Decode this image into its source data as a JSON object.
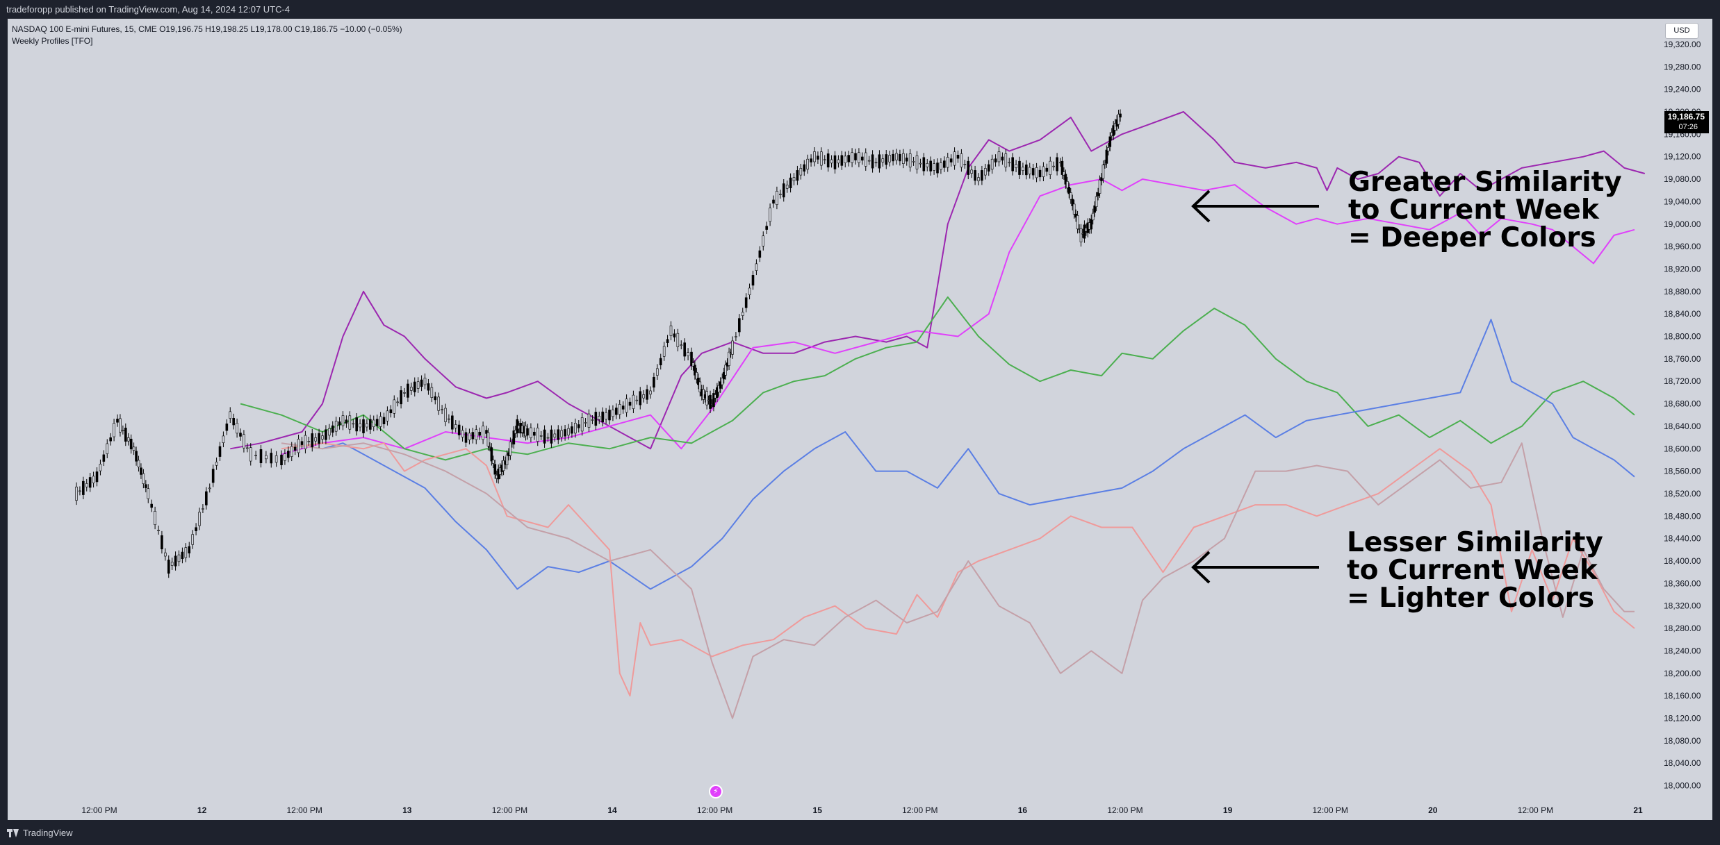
{
  "header": {
    "published_text": "tradeforopp published on TradingView.com, Aug 14, 2024 12:07 UTC-4"
  },
  "legend": {
    "symbol_line": "NASDAQ 100 E-mini Futures, 15, CME  O19,196.75  H19,198.25  L19,178.00  C19,186.75  −10.00 (−0.05%)",
    "indicator": "Weekly Profiles [TFO]"
  },
  "price_scale": {
    "currency": "USD",
    "last_price": "19,186.75",
    "countdown": "07:26"
  },
  "annotations": {
    "greater": [
      "Greater Similarity",
      "to Current Week",
      "= Deeper Colors"
    ],
    "lesser": [
      "Lesser Similarity",
      "to Current Week",
      "= Lighter Colors"
    ]
  },
  "footer": {
    "brand": "TradingView"
  },
  "icons": {
    "event_marker": "lightning-icon",
    "arrow": "arrow-left-icon"
  },
  "colors": {
    "background": "#d1d4dc",
    "frame": "#1e222d",
    "candles": "#000000"
  },
  "chart_data": {
    "type": "line",
    "title": "",
    "xlabel": "",
    "ylabel": "",
    "ylim": [
      17970,
      19330
    ],
    "x_ticks": [
      "12:00 PM",
      "12",
      "12:00 PM",
      "13",
      "12:00 PM",
      "14",
      "12:00 PM",
      "15",
      "12:00 PM",
      "16",
      "12:00 PM",
      "19",
      "12:00 PM",
      "20",
      "12:00 PM",
      "21"
    ],
    "y_ticks": [
      "18,000.00",
      "18,040.00",
      "18,080.00",
      "18,120.00",
      "18,160.00",
      "18,200.00",
      "18,240.00",
      "18,280.00",
      "18,320.00",
      "18,360.00",
      "18,400.00",
      "18,440.00",
      "18,480.00",
      "18,520.00",
      "18,560.00",
      "18,600.00",
      "18,640.00",
      "18,680.00",
      "18,720.00",
      "18,760.00",
      "18,800.00",
      "18,840.00",
      "18,880.00",
      "18,920.00",
      "18,960.00",
      "19,000.00",
      "19,040.00",
      "19,080.00",
      "19,120.00",
      "19,160.00",
      "19,200.00",
      "19,240.00",
      "19,280.00",
      "19,320.00"
    ],
    "x_range_days": [
      0,
      7.5
    ],
    "candles": {
      "name": "",
      "color": "#000000",
      "x": [
        0.0,
        0.1,
        0.2,
        0.28,
        0.35,
        0.45,
        0.55,
        0.65,
        0.75,
        0.85,
        1.0,
        1.1,
        1.2,
        1.3,
        1.4,
        1.5,
        1.6,
        1.7,
        1.8,
        1.9,
        2.0,
        2.05,
        2.1,
        2.15,
        2.2,
        2.3,
        2.4,
        2.5,
        2.6,
        2.7,
        2.8,
        2.9,
        3.0,
        3.05,
        3.1,
        3.15,
        3.2,
        3.3,
        3.4,
        3.5,
        3.6,
        3.7,
        3.8,
        3.9,
        4.0,
        4.1,
        4.2,
        4.3,
        4.4,
        4.5,
        4.6,
        4.7,
        4.8,
        4.85,
        4.9,
        4.95,
        5.0,
        5.05,
        5.1
      ],
      "values": [
        18520,
        18550,
        18650,
        18600,
        18520,
        18390,
        18420,
        18530,
        18660,
        18590,
        18580,
        18610,
        18620,
        18650,
        18640,
        18650,
        18700,
        18720,
        18660,
        18620,
        18630,
        18550,
        18580,
        18640,
        18630,
        18620,
        18630,
        18650,
        18660,
        18680,
        18700,
        18810,
        18760,
        18700,
        18680,
        18720,
        18780,
        18900,
        19040,
        19080,
        19120,
        19110,
        19120,
        19110,
        19120,
        19110,
        19100,
        19120,
        19080,
        19120,
        19100,
        19090,
        19110,
        19050,
        18980,
        19000,
        19080,
        19160,
        19200
      ]
    },
    "series": [
      {
        "name": "",
        "color": "#9c27b0",
        "x": [
          0.75,
          0.9,
          1.1,
          1.2,
          1.3,
          1.4,
          1.5,
          1.6,
          1.7,
          1.85,
          2.0,
          2.1,
          2.25,
          2.4,
          2.55,
          2.7,
          2.8,
          2.95,
          3.05,
          3.2,
          3.35,
          3.5,
          3.65,
          3.8,
          3.95,
          4.05,
          4.15,
          4.25,
          4.35,
          4.45,
          4.55,
          4.7,
          4.85,
          4.95,
          5.1,
          5.25,
          5.4,
          5.55,
          5.65,
          5.8,
          5.95,
          6.05,
          6.1,
          6.15,
          6.25,
          6.35,
          6.45,
          6.55,
          6.65,
          6.75,
          6.85,
          6.95,
          7.05,
          7.2,
          7.35,
          7.45,
          7.55,
          7.65
        ],
        "values": [
          18600,
          18610,
          18630,
          18680,
          18800,
          18880,
          18820,
          18800,
          18760,
          18710,
          18690,
          18700,
          18720,
          18680,
          18650,
          18620,
          18600,
          18730,
          18770,
          18790,
          18770,
          18770,
          18790,
          18800,
          18790,
          18800,
          18780,
          19000,
          19100,
          19150,
          19130,
          19150,
          19190,
          19130,
          19160,
          19180,
          19200,
          19150,
          19110,
          19100,
          19110,
          19100,
          19060,
          19100,
          19080,
          19090,
          19120,
          19110,
          19050,
          19090,
          19060,
          19080,
          19100,
          19110,
          19120,
          19130,
          19100,
          19090
        ]
      },
      {
        "name": "",
        "color": "#e040fb",
        "x": [
          1.0,
          1.2,
          1.4,
          1.6,
          1.8,
          2.0,
          2.2,
          2.4,
          2.6,
          2.8,
          2.95,
          3.1,
          3.3,
          3.5,
          3.7,
          3.9,
          4.1,
          4.3,
          4.45,
          4.55,
          4.7,
          4.85,
          5.0,
          5.1,
          5.2,
          5.35,
          5.5,
          5.65,
          5.8,
          5.95,
          6.05,
          6.15,
          6.3,
          6.45,
          6.6,
          6.75,
          6.85,
          6.95,
          7.1,
          7.2,
          7.3,
          7.4,
          7.5,
          7.6
        ],
        "values": [
          18590,
          18610,
          18620,
          18600,
          18630,
          18620,
          18610,
          18620,
          18640,
          18660,
          18600,
          18670,
          18780,
          18790,
          18770,
          18790,
          18810,
          18800,
          18840,
          18950,
          19050,
          19070,
          19080,
          19060,
          19080,
          19070,
          19060,
          19070,
          19030,
          19000,
          19010,
          19000,
          19010,
          19000,
          18990,
          19020,
          18980,
          19010,
          19000,
          18990,
          18960,
          18930,
          18980,
          18990
        ]
      },
      {
        "name": "",
        "color": "#4caf50",
        "x": [
          0.8,
          1.0,
          1.2,
          1.4,
          1.6,
          1.8,
          2.0,
          2.2,
          2.4,
          2.6,
          2.8,
          3.0,
          3.2,
          3.35,
          3.5,
          3.65,
          3.8,
          3.95,
          4.1,
          4.25,
          4.4,
          4.55,
          4.7,
          4.85,
          5.0,
          5.1,
          5.25,
          5.4,
          5.55,
          5.7,
          5.85,
          6.0,
          6.15,
          6.3,
          6.45,
          6.6,
          6.75,
          6.9,
          7.05,
          7.2,
          7.35,
          7.5,
          7.6
        ],
        "values": [
          18680,
          18660,
          18630,
          18660,
          18600,
          18580,
          18600,
          18590,
          18610,
          18600,
          18620,
          18610,
          18650,
          18700,
          18720,
          18730,
          18760,
          18780,
          18790,
          18870,
          18800,
          18750,
          18720,
          18740,
          18730,
          18770,
          18760,
          18810,
          18850,
          18820,
          18760,
          18720,
          18700,
          18640,
          18660,
          18620,
          18650,
          18610,
          18640,
          18700,
          18720,
          18690,
          18660
        ]
      },
      {
        "name": "",
        "color": "#5b7fe4",
        "x": [
          1.2,
          1.3,
          1.4,
          1.55,
          1.7,
          1.85,
          2.0,
          2.15,
          2.3,
          2.45,
          2.6,
          2.8,
          3.0,
          3.15,
          3.3,
          3.45,
          3.6,
          3.75,
          3.9,
          4.05,
          4.2,
          4.35,
          4.5,
          4.65,
          4.8,
          4.95,
          5.1,
          5.25,
          5.4,
          5.55,
          5.7,
          5.85,
          6.0,
          6.15,
          6.3,
          6.45,
          6.6,
          6.75,
          6.9,
          7.0,
          7.1,
          7.2,
          7.3,
          7.4,
          7.5,
          7.6
        ],
        "values": [
          18600,
          18610,
          18590,
          18560,
          18530,
          18470,
          18420,
          18350,
          18390,
          18380,
          18400,
          18350,
          18390,
          18440,
          18510,
          18560,
          18600,
          18630,
          18560,
          18560,
          18530,
          18600,
          18520,
          18500,
          18510,
          18520,
          18530,
          18560,
          18600,
          18630,
          18660,
          18620,
          18650,
          18660,
          18670,
          18680,
          18690,
          18700,
          18830,
          18720,
          18700,
          18680,
          18620,
          18600,
          18580,
          18550
        ]
      },
      {
        "name": "",
        "color": "#ef9a9a",
        "x": [
          1.0,
          1.2,
          1.4,
          1.5,
          1.6,
          1.7,
          1.8,
          1.9,
          2.0,
          2.1,
          2.2,
          2.3,
          2.4,
          2.5,
          2.6,
          2.65,
          2.7,
          2.75,
          2.8,
          2.95,
          3.1,
          3.25,
          3.4,
          3.55,
          3.7,
          3.85,
          4.0,
          4.1,
          4.2,
          4.3,
          4.4,
          4.55,
          4.7,
          4.85,
          5.0,
          5.15,
          5.3,
          5.45,
          5.6,
          5.75,
          5.9,
          6.05,
          6.2,
          6.35,
          6.5,
          6.65,
          6.8,
          6.9,
          7.0,
          7.1,
          7.2,
          7.3,
          7.4,
          7.5,
          7.6
        ],
        "values": [
          18600,
          18610,
          18600,
          18610,
          18560,
          18580,
          18590,
          18600,
          18570,
          18480,
          18470,
          18460,
          18500,
          18460,
          18420,
          18200,
          18160,
          18290,
          18250,
          18260,
          18230,
          18250,
          18260,
          18300,
          18320,
          18280,
          18270,
          18340,
          18300,
          18380,
          18400,
          18420,
          18440,
          18480,
          18460,
          18460,
          18380,
          18460,
          18480,
          18500,
          18500,
          18480,
          18500,
          18520,
          18560,
          18600,
          18560,
          18500,
          18310,
          18420,
          18330,
          18440,
          18380,
          18310,
          18280
        ]
      },
      {
        "name": "",
        "color": "#c4a0a8",
        "x": [
          1.0,
          1.2,
          1.4,
          1.6,
          1.8,
          2.0,
          2.2,
          2.4,
          2.6,
          2.8,
          3.0,
          3.1,
          3.2,
          3.3,
          3.45,
          3.6,
          3.75,
          3.9,
          4.05,
          4.2,
          4.35,
          4.5,
          4.65,
          4.8,
          4.95,
          5.1,
          5.2,
          5.3,
          5.45,
          5.6,
          5.75,
          5.9,
          6.05,
          6.2,
          6.35,
          6.5,
          6.65,
          6.8,
          6.95,
          7.05,
          7.15,
          7.25,
          7.35,
          7.45,
          7.55,
          7.6
        ],
        "values": [
          18610,
          18600,
          18610,
          18590,
          18560,
          18520,
          18460,
          18440,
          18400,
          18420,
          18350,
          18220,
          18120,
          18230,
          18260,
          18250,
          18300,
          18330,
          18290,
          18310,
          18400,
          18320,
          18290,
          18200,
          18240,
          18200,
          18330,
          18370,
          18400,
          18440,
          18560,
          18560,
          18570,
          18560,
          18500,
          18540,
          18580,
          18530,
          18540,
          18610,
          18440,
          18300,
          18420,
          18350,
          18310,
          18310
        ]
      }
    ]
  }
}
